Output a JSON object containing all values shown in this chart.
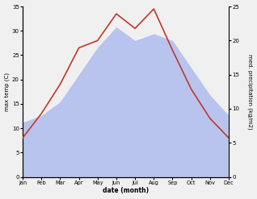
{
  "months": [
    "Jan",
    "Feb",
    "Mar",
    "Apr",
    "May",
    "Jun",
    "Jul",
    "Aug",
    "Sep",
    "Oct",
    "Nov",
    "Dec"
  ],
  "temp": [
    8.0,
    13.0,
    19.0,
    26.5,
    28.0,
    33.5,
    30.5,
    34.5,
    26.0,
    18.0,
    12.0,
    8.0
  ],
  "precip": [
    8.0,
    9.0,
    11.0,
    15.0,
    19.0,
    22.0,
    20.0,
    21.0,
    20.0,
    16.0,
    12.0,
    9.0
  ],
  "temp_color": "#c0392b",
  "precip_color": "#b8c4ee",
  "temp_ylim": [
    0,
    35
  ],
  "precip_ylim": [
    0,
    25
  ],
  "temp_yticks": [
    0,
    5,
    10,
    15,
    20,
    25,
    30,
    35
  ],
  "precip_yticks": [
    0,
    5,
    10,
    15,
    20,
    25
  ],
  "xlabel": "date (month)",
  "ylabel_left": "max temp (C)",
  "ylabel_right": "med. precipitation (kg/m2)",
  "bg_color": "#f0f0f0",
  "fig_width": 3.18,
  "fig_height": 2.47,
  "dpi": 100
}
